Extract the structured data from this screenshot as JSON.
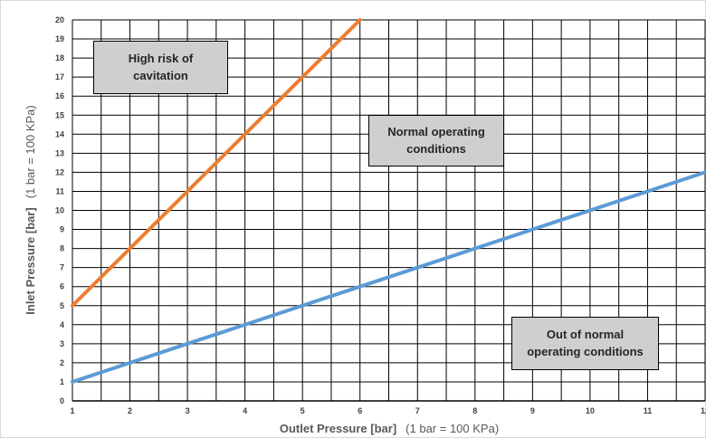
{
  "chart_data": {
    "type": "line",
    "x": [
      1,
      2,
      3,
      4,
      5,
      6,
      7,
      8,
      9,
      10,
      11,
      12
    ],
    "xlim": [
      1,
      12
    ],
    "ylim": [
      0,
      20
    ],
    "x_ticks": [
      "1",
      "2",
      "3",
      "4",
      "5",
      "6",
      "7",
      "8",
      "9",
      "10",
      "11",
      "12"
    ],
    "y_ticks": [
      "0",
      "1",
      "2",
      "3",
      "4",
      "5",
      "6",
      "7",
      "8",
      "9",
      "10",
      "11",
      "12",
      "13",
      "14",
      "15",
      "16",
      "17",
      "18",
      "19",
      "20"
    ],
    "xlabel": "Outlet Pressure [bar]",
    "xlabel_note": "(1 bar = 100 KPa)",
    "ylabel": "Inlet Pressure [bar]",
    "ylabel_note": "(1 bar = 100 KPa)",
    "grid": "major and minor (every 0.5 bar)",
    "series": [
      {
        "color": "#ed7d31",
        "x": [
          1,
          6
        ],
        "y": [
          5,
          20
        ]
      },
      {
        "color": "#5b9bd5",
        "x": [
          1,
          12
        ],
        "y": [
          1,
          12
        ]
      }
    ],
    "annotations": [
      {
        "lines": [
          "High risk of",
          "cavitation"
        ]
      },
      {
        "lines": [
          "Normal operating",
          "conditions"
        ]
      },
      {
        "lines": [
          "Out of normal",
          "operating conditions"
        ]
      }
    ]
  }
}
